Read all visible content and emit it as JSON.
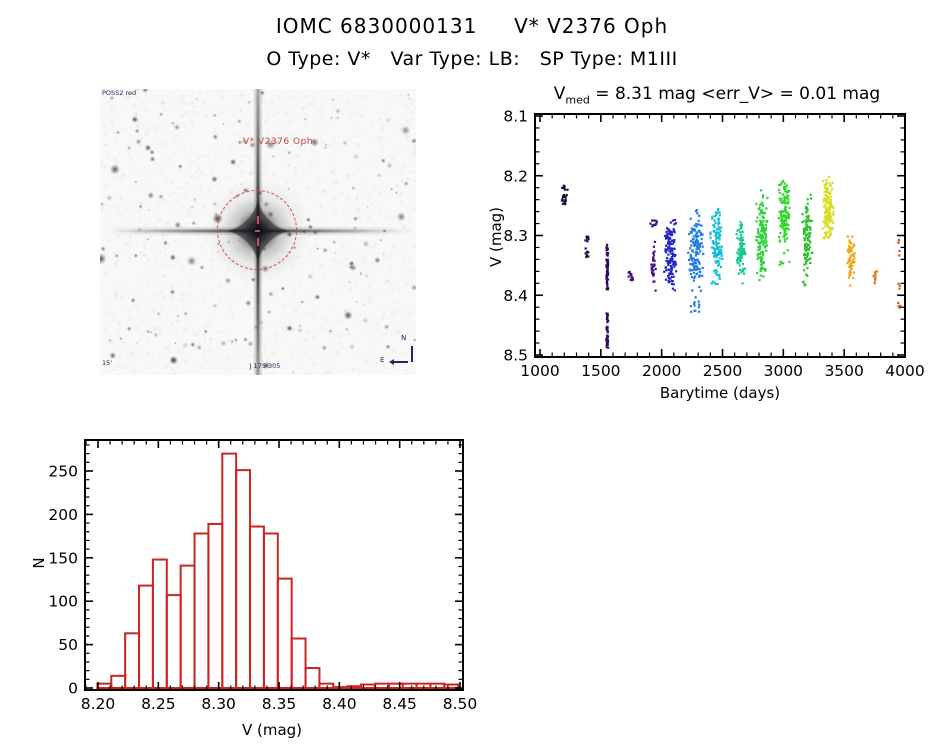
{
  "header": {
    "title": "IOMC 6830000131     V* V2376 Oph",
    "subtitle": "O Type: V*   Var Type: LB:   SP Type: M1III"
  },
  "finder_chart": {
    "survey_label": "POSS2 red",
    "target_label": "V* V2376 Oph",
    "coords_label": "J 175 305",
    "scale_label": "15'",
    "compass_north": "N",
    "compass_east": "E",
    "circle_color": "#e04545",
    "target_label_color": "#c84040",
    "annotation_color": "#26265e"
  },
  "chart_data": [
    {
      "type": "scatter",
      "title_prefix": "V",
      "title_sub": "med",
      "title_rest": " = 8.31 mag <err_V> = 0.01 mag",
      "median_v_mag": 8.31,
      "mean_err_v_mag": 0.01,
      "xlabel": "Barytime (days)",
      "ylabel": "V (mag)",
      "xlim": [
        1000,
        4000
      ],
      "ylim": [
        8.5,
        8.1
      ],
      "y_axis_inverted": true,
      "x_ticks": [
        1000,
        1500,
        2000,
        2500,
        3000,
        3500,
        4000
      ],
      "y_ticks": [
        8.1,
        8.2,
        8.3,
        8.4,
        8.5
      ],
      "x_minor_step": 100,
      "y_minor_step": 0.02,
      "point_color_scheme": "rainbow by observation epoch",
      "clusters": [
        {
          "t": 1200,
          "w": 28,
          "color": "#1c0d38",
          "segments": [
            [
              8.215,
              8.228,
              9
            ],
            [
              8.231,
              8.249,
              16
            ]
          ]
        },
        {
          "t": 1390,
          "w": 22,
          "color": "#2b0b52",
          "segments": [
            [
              8.297,
              8.313,
              9
            ],
            [
              8.319,
              8.346,
              11
            ]
          ]
        },
        {
          "t": 1553,
          "w": 9,
          "color": "#35095f",
          "segments": [
            [
              8.315,
              8.392,
              60
            ],
            [
              8.43,
              8.489,
              42
            ]
          ]
        },
        {
          "t": 1745,
          "w": 26,
          "color": "#3d0f70",
          "segments": [
            [
              8.351,
              8.381,
              13
            ]
          ]
        },
        {
          "t": 1935,
          "w": 28,
          "color": "#471380",
          "segments": [
            [
              8.266,
              8.292,
              12
            ],
            [
              8.304,
              8.401,
              30
            ]
          ]
        },
        {
          "t": 2072,
          "w": 55,
          "color": "#2427c4",
          "segments": [
            [
              8.253,
              8.406,
              140
            ]
          ]
        },
        {
          "t": 2280,
          "w": 65,
          "color": "#1f7ce2",
          "segments": [
            [
              8.251,
              8.401,
              130
            ],
            [
              8.402,
              8.433,
              12
            ]
          ]
        },
        {
          "t": 2452,
          "w": 55,
          "color": "#12bfd8",
          "segments": [
            [
              8.251,
              8.387,
              115
            ]
          ]
        },
        {
          "t": 2650,
          "w": 45,
          "color": "#16cb8f",
          "segments": [
            [
              8.27,
              8.386,
              80
            ]
          ]
        },
        {
          "t": 2825,
          "w": 50,
          "color": "#2fd13a",
          "segments": [
            [
              8.214,
              8.386,
              135
            ]
          ]
        },
        {
          "t": 3008,
          "w": 52,
          "color": "#36d42f",
          "segments": [
            [
              8.197,
              8.336,
              130
            ],
            [
              8.34,
              8.352,
              6
            ]
          ]
        },
        {
          "t": 3200,
          "w": 45,
          "color": "#2dc12d",
          "segments": [
            [
              8.228,
              8.387,
              105
            ]
          ]
        },
        {
          "t": 3370,
          "w": 50,
          "color": "#d9de20",
          "segments": [
            [
              8.197,
              8.312,
              150
            ]
          ]
        },
        {
          "t": 3555,
          "w": 33,
          "color": "#f2a41e",
          "segments": [
            [
              8.299,
              8.387,
              62
            ]
          ]
        },
        {
          "t": 3755,
          "w": 16,
          "color": "#e27a1a",
          "segments": [
            [
              8.354,
              8.387,
              13
            ]
          ]
        },
        {
          "t": 3950,
          "w": 20,
          "color": "#d25a1c",
          "segments": [
            [
              8.3,
              8.341,
              5
            ],
            [
              8.374,
              8.392,
              3
            ],
            [
              8.401,
              8.433,
              5
            ]
          ]
        }
      ]
    },
    {
      "type": "bar",
      "xlabel": "V (mag)",
      "ylabel": "N",
      "bar_color": "#cc2420",
      "xlim": [
        8.19,
        8.5
      ],
      "ylim": [
        0,
        285
      ],
      "x_ticks": [
        8.2,
        8.25,
        8.3,
        8.35,
        8.4,
        8.45,
        8.5
      ],
      "y_ticks": [
        0,
        50,
        100,
        150,
        200,
        250
      ],
      "x_minor_step": 0.01,
      "y_minor_step": 10,
      "bin_start": 8.1995,
      "bin_width": 0.0115,
      "counts": [
        5,
        14,
        63,
        118,
        148,
        107,
        141,
        178,
        189,
        270,
        251,
        186,
        178,
        126,
        57,
        23,
        5,
        1,
        2,
        4,
        5,
        5,
        5,
        5,
        5,
        4
      ]
    }
  ]
}
